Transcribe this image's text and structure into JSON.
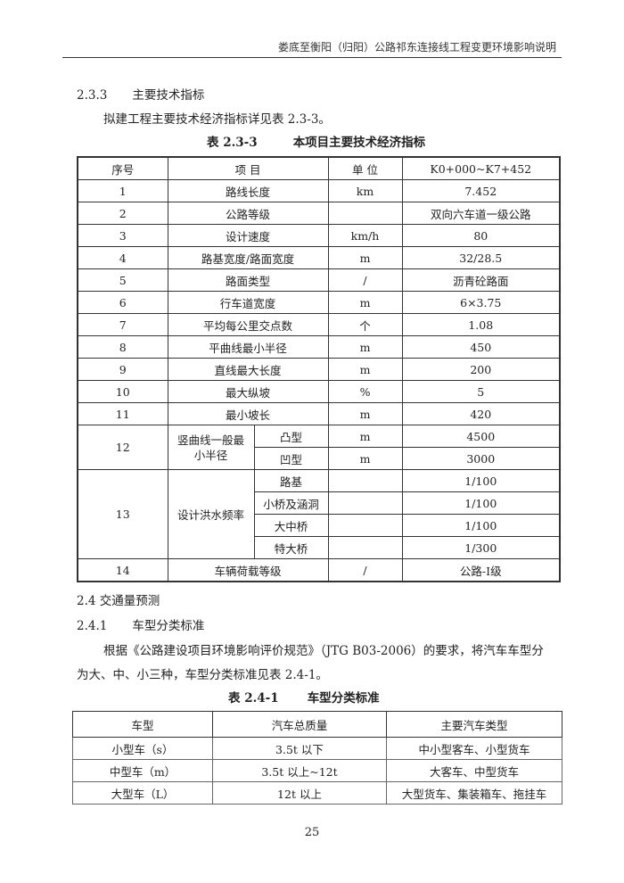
{
  "header": {
    "title": "娄底至衡阳（归阳）公路祁东连接线工程变更环境影响说明"
  },
  "section_233": {
    "number": "2.3.3",
    "title": "主要技术指标",
    "text": "拟建工程主要技术经济指标详见表 2.3-3。"
  },
  "table1": {
    "caption_no": "表 2.3-3",
    "caption": "本项目主要技术经济指标",
    "headers": [
      "序号",
      "项 目",
      "单 位",
      "K0+000~K7+452"
    ],
    "rows": [
      {
        "no": "1",
        "item": "路线长度",
        "unit": "km",
        "value": "7.452"
      },
      {
        "no": "2",
        "item": "公路等级",
        "unit": "",
        "value": "双向六车道一级公路"
      },
      {
        "no": "3",
        "item": "设计速度",
        "unit": "km/h",
        "value": "80"
      },
      {
        "no": "4",
        "item": "路基宽度/路面宽度",
        "unit": "m",
        "value": "32/28.5"
      },
      {
        "no": "5",
        "item": "路面类型",
        "unit": "/",
        "value": "沥青砼路面"
      },
      {
        "no": "6",
        "item": "行车道宽度",
        "unit": "m",
        "value": "6×3.75"
      },
      {
        "no": "7",
        "item": "平均每公里交点数",
        "unit": "个",
        "value": "1.08"
      },
      {
        "no": "8",
        "item": "平曲线最小半径",
        "unit": "m",
        "value": "450"
      },
      {
        "no": "9",
        "item": "直线最大长度",
        "unit": "m",
        "value": "200"
      },
      {
        "no": "10",
        "item": "最大纵坡",
        "unit": "%",
        "value": "5"
      },
      {
        "no": "11",
        "item": "最小坡长",
        "unit": "m",
        "value": "420"
      }
    ],
    "row12": {
      "no": "12",
      "item": "竖曲线一般最小半径",
      "subs": [
        {
          "name": "凸型",
          "unit": "m",
          "value": "4500"
        },
        {
          "name": "凹型",
          "unit": "m",
          "value": "3000"
        }
      ]
    },
    "row13": {
      "no": "13",
      "item": "设计洪水频率",
      "subs": [
        {
          "name": "路基",
          "unit": "",
          "value": "1/100"
        },
        {
          "name": "小桥及涵洞",
          "unit": "",
          "value": "1/100"
        },
        {
          "name": "大中桥",
          "unit": "",
          "value": "1/100"
        },
        {
          "name": "特大桥",
          "unit": "",
          "value": "1/300"
        }
      ]
    },
    "row14": {
      "no": "14",
      "item": "车辆荷载等级",
      "unit": "/",
      "value": "公路-Ⅰ级"
    }
  },
  "section_24": {
    "number": "2.4",
    "title": "交通量预测"
  },
  "section_241": {
    "number": "2.4.1",
    "title": "车型分类标准",
    "text1": "根据《公路建设项目环境影响评价规范》（JTG B03-2006）的要求，将汽车车型分",
    "text2": "为大、中、小三种，车型分类标准见表 2.4-1。"
  },
  "table2": {
    "caption_no": "表 2.4-1",
    "caption": "车型分类标准",
    "headers": [
      "车型",
      "汽车总质量",
      "主要汽车类型"
    ],
    "rows": [
      [
        "小型车（s）",
        "3.5t 以下",
        "中小型客车、小型货车"
      ],
      [
        "中型车（m）",
        "3.5t 以上~12t",
        "大客车、中型货车"
      ],
      [
        "大型车（L）",
        "12t 以上",
        "大型货车、集装箱车、拖挂车"
      ]
    ]
  },
  "page_number": "25"
}
